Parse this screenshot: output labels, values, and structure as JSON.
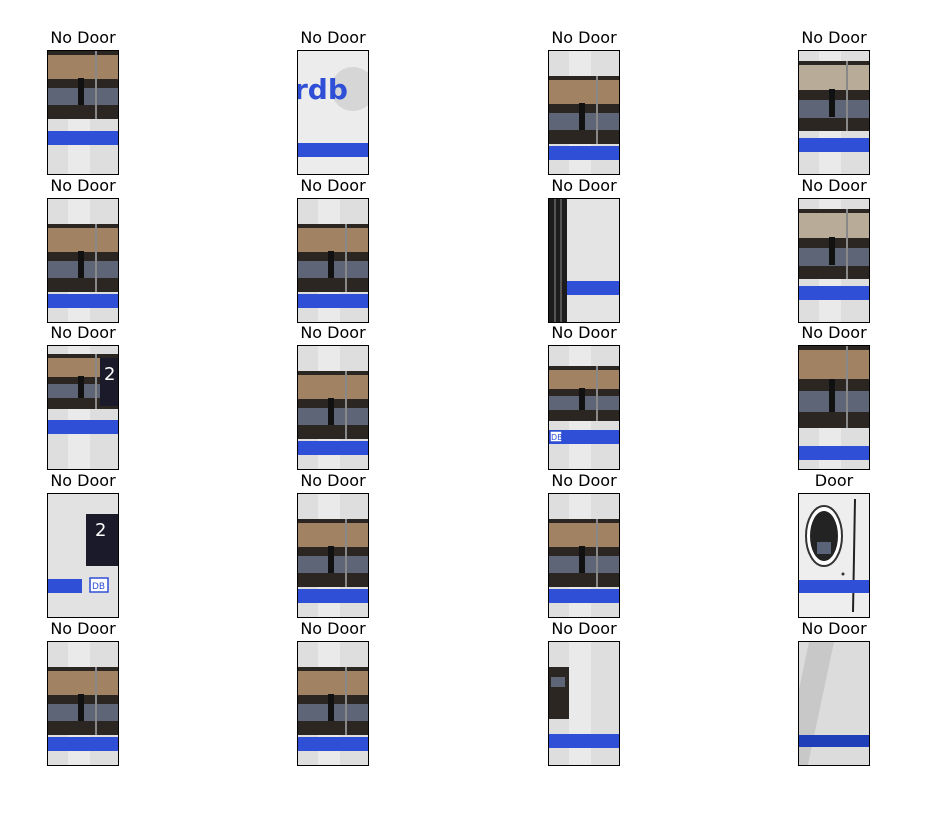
{
  "grid": {
    "rows": [
      [
        {
          "label": "No Door",
          "scene": "window-top"
        },
        {
          "label": "No Door",
          "scene": "logo"
        },
        {
          "label": "No Door",
          "scene": "window-mid"
        },
        {
          "label": "No Door",
          "scene": "window-bright"
        }
      ],
      [
        {
          "label": "No Door",
          "scene": "window-mid"
        },
        {
          "label": "No Door",
          "scene": "window-mid"
        },
        {
          "label": "No Door",
          "scene": "edge-dark"
        },
        {
          "label": "No Door",
          "scene": "window-bright"
        }
      ],
      [
        {
          "label": "No Door",
          "scene": "sign-2"
        },
        {
          "label": "No Door",
          "scene": "window-mid"
        },
        {
          "label": "No Door",
          "scene": "window-db"
        },
        {
          "label": "No Door",
          "scene": "window-low"
        }
      ],
      [
        {
          "label": "No Door",
          "scene": "sign-db"
        },
        {
          "label": "No Door",
          "scene": "window-mid"
        },
        {
          "label": "No Door",
          "scene": "window-mid"
        },
        {
          "label": "Door",
          "scene": "door"
        }
      ],
      [
        {
          "label": "No Door",
          "scene": "window-mid"
        },
        {
          "label": "No Door",
          "scene": "window-mid"
        },
        {
          "label": "No Door",
          "scene": "small-window"
        },
        {
          "label": "No Door",
          "scene": "plain"
        }
      ]
    ]
  }
}
